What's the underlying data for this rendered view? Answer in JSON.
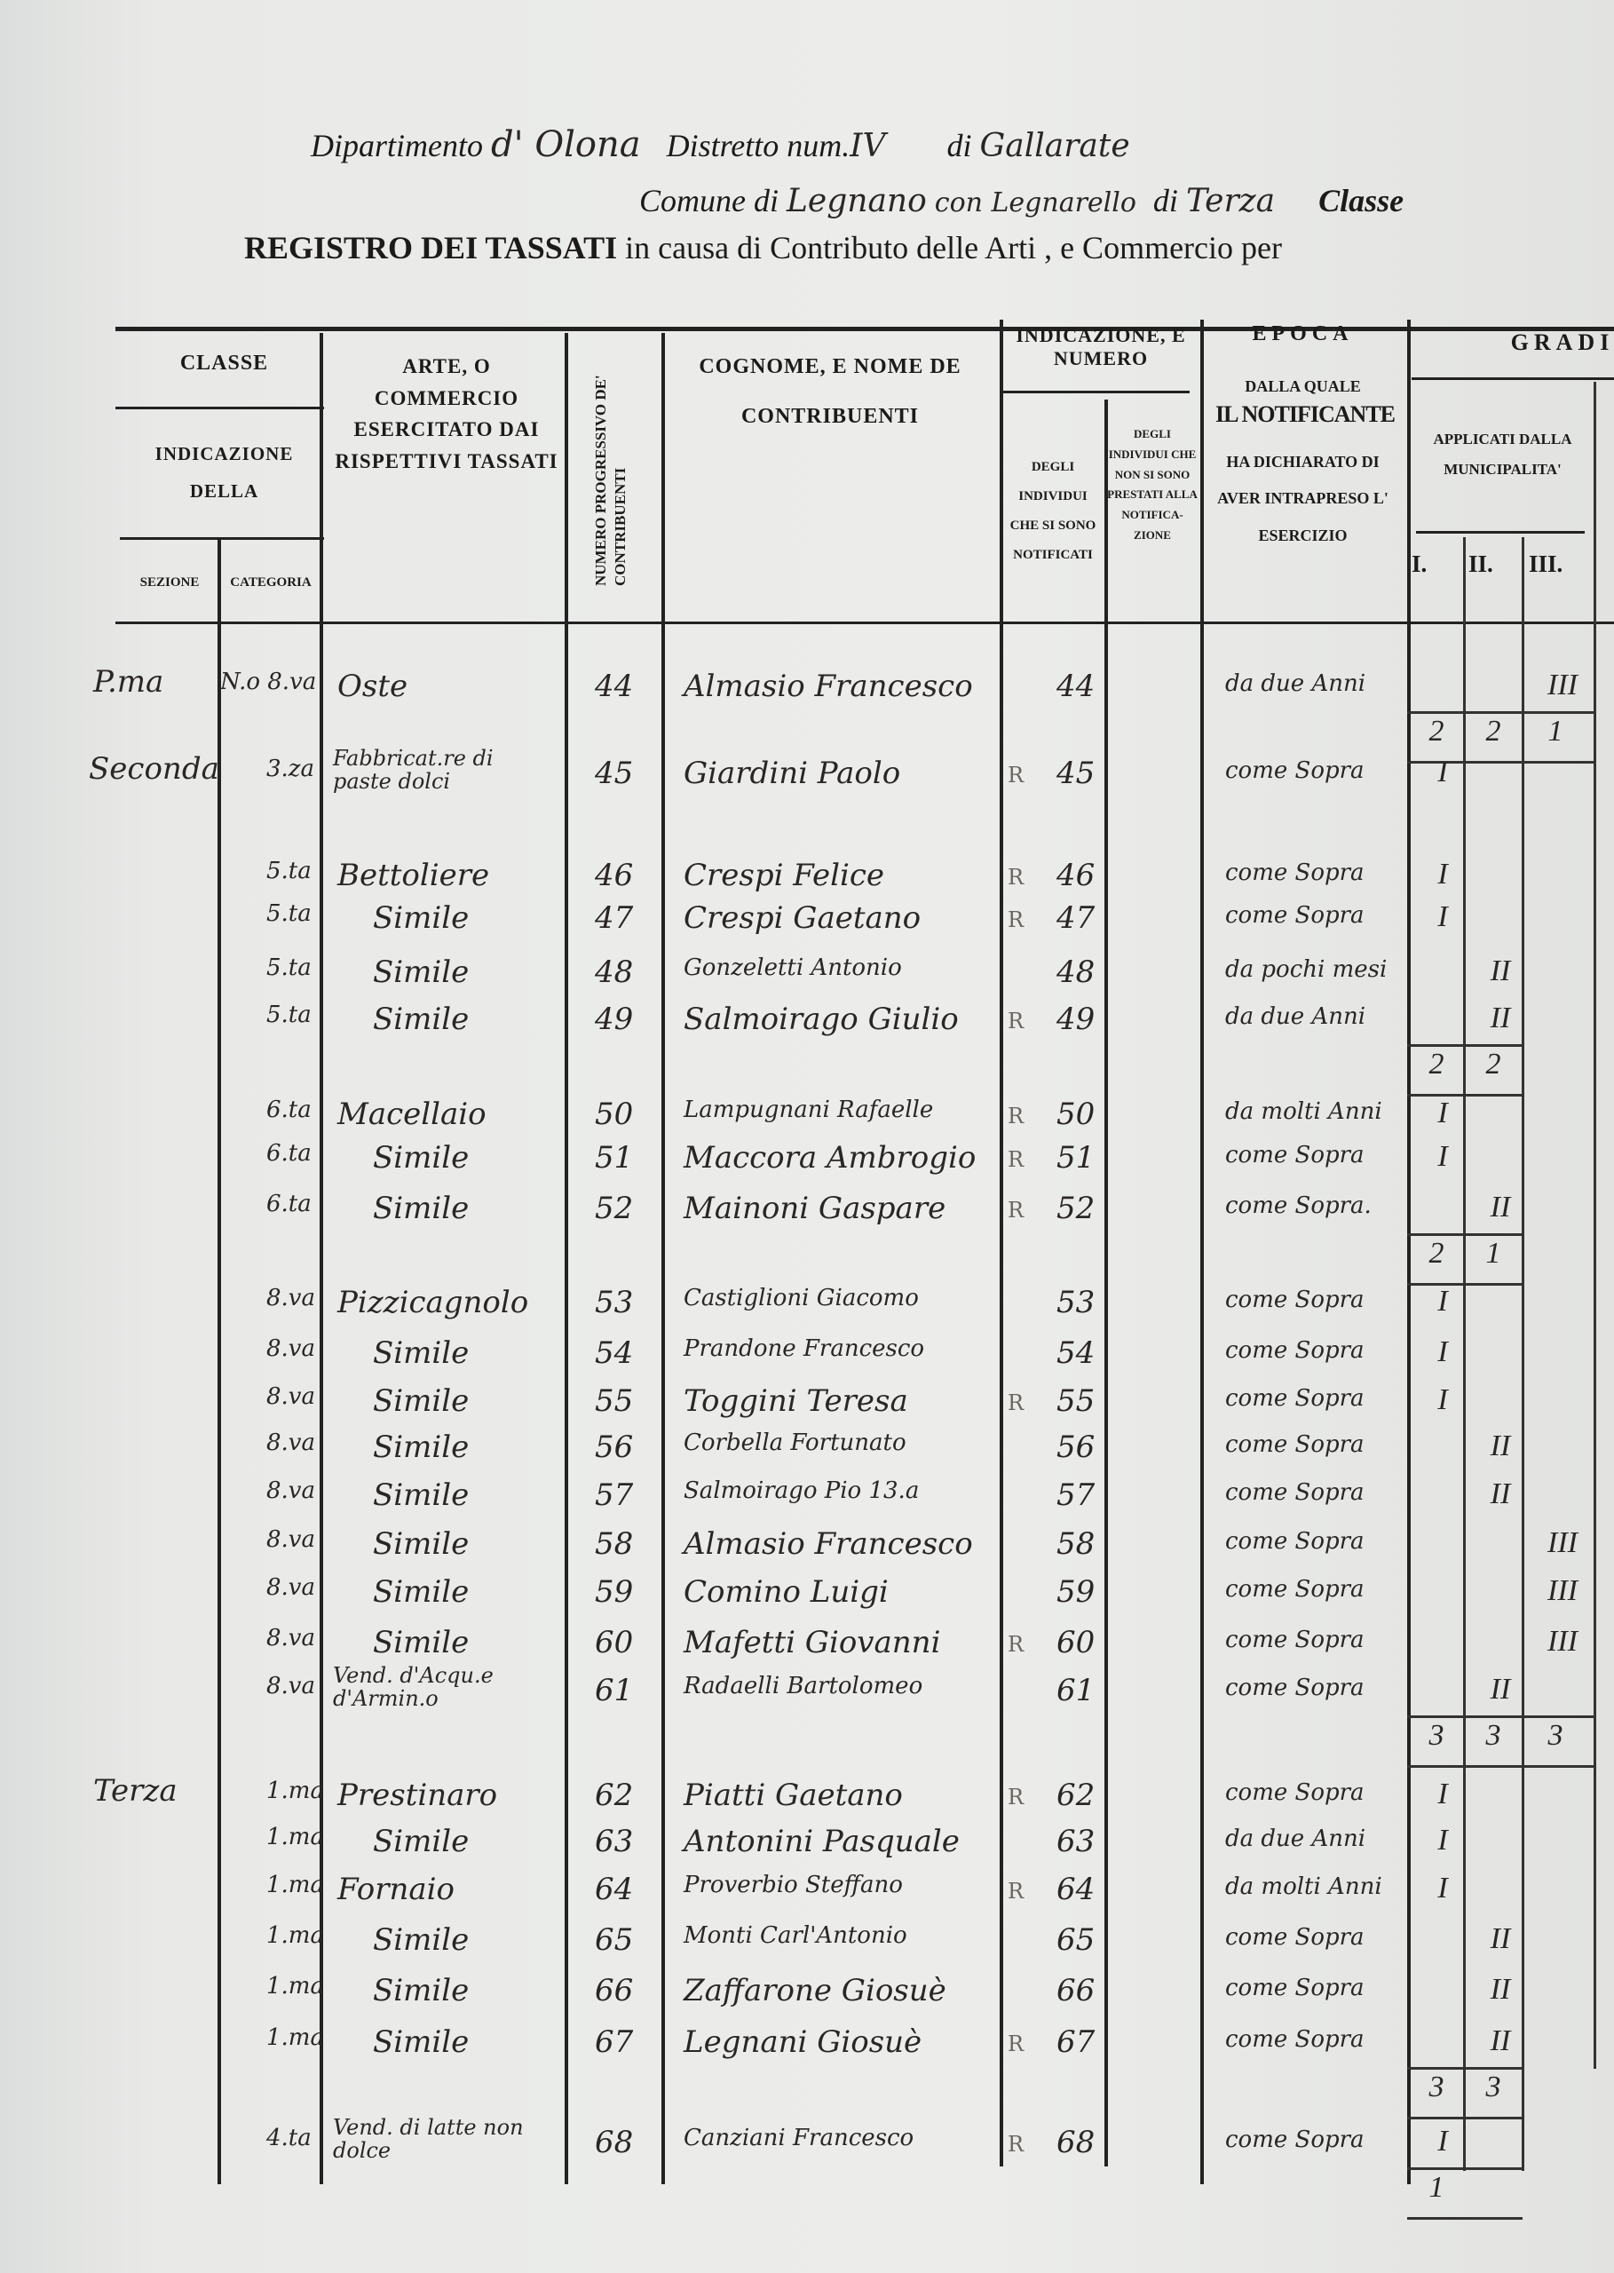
{
  "heading": {
    "line1_print_a": "Dipartimento",
    "line1_hand_a": "d' Olona",
    "line1_print_b": "Distretto num.",
    "line1_hand_b": "IV",
    "line1_print_c": "di",
    "line1_hand_c": "Gallarate",
    "line2_print_a": "Comune di",
    "line2_hand_a": "Legnano",
    "line2_hand_b": "con Legnarello",
    "line2_print_b": "di",
    "line2_hand_c": "Terza",
    "line2_print_c": "Classe",
    "line3_bold": "REGISTRO DEI TASSATI",
    "line3_rest": "in causa di Contributo delle Arti , e Commercio per"
  },
  "columns": {
    "classe": "CLASSE",
    "indicazione_della": "INDICAZIONE DELLA",
    "sezione": "SEZIONE",
    "categoria": "CATEGORIA",
    "arte": "ARTE, O COMMERCIO ESERCITATO DAI RISPETTIVI TASSATI",
    "numero": "NUMERO PROGRESSIVO DE' CONTRIBUENTI",
    "cognome": "COGNOME, E NOME DE CONTRIBUENTI",
    "indicazione_numero": "INDICAZIONE, E NUMERO",
    "notificati": "DEGLI INDIVIDUI CHE SI SONO NOTIFICATI",
    "non_notificati": "DEGLI INDIVIDUI CHE NON SI SONO PRESTATI ALLA NOTIFICA-ZIONE",
    "epoca": "EPOCA",
    "epoca_sub": "DALLA QUALE",
    "epoca_big": "IL NOTIFICANTE",
    "epoca_rest": "HA DICHIARATO DI AVER INTRAPRESO L' ESERCIZIO",
    "gradi": "GRADI",
    "applicati": "APPLICATI DALLA MUNICIPALITA'",
    "grade_labels": [
      "I.",
      "II.",
      "III."
    ]
  },
  "rows": [
    {
      "sezione": "P.ma",
      "categoria": "N.o 8.va",
      "arte": "Oste",
      "num": "44",
      "nome": "Almasio Francesco",
      "r": "",
      "num2": "44",
      "epoca": "da due Anni",
      "grado": "III"
    },
    {
      "sezione": "Seconda",
      "categoria": "3.za",
      "arte": "Fabbricat.re di paste dolci",
      "num": "45",
      "nome": "Giardini Paolo",
      "r": "R",
      "num2": "45",
      "epoca": "come Sopra",
      "grado": "I"
    },
    {
      "sezione": "",
      "categoria": "5.ta",
      "arte": "Bettoliere",
      "num": "46",
      "nome": "Crespi Felice",
      "r": "R",
      "num2": "46",
      "epoca": "come Sopra",
      "grado": "I"
    },
    {
      "sezione": "",
      "categoria": "5.ta",
      "arte": "Simile",
      "num": "47",
      "nome": "Crespi Gaetano",
      "r": "R",
      "num2": "47",
      "epoca": "come Sopra",
      "grado": "I"
    },
    {
      "sezione": "",
      "categoria": "5.ta",
      "arte": "Simile",
      "num": "48",
      "nome": "Gonzeletti Antonio",
      "r": "",
      "num2": "48",
      "epoca": "da pochi mesi",
      "grado": "II"
    },
    {
      "sezione": "",
      "categoria": "5.ta",
      "arte": "Simile",
      "num": "49",
      "nome": "Salmoirago Giulio",
      "r": "R",
      "num2": "49",
      "epoca": "da due Anni",
      "grado": "II"
    },
    {
      "sezione": "",
      "categoria": "6.ta",
      "arte": "Macellaio",
      "num": "50",
      "nome": "Lampugnani Rafaelle",
      "r": "R",
      "num2": "50",
      "epoca": "da molti Anni",
      "grado": "I"
    },
    {
      "sezione": "",
      "categoria": "6.ta",
      "arte": "Simile",
      "num": "51",
      "nome": "Maccora Ambrogio",
      "r": "R",
      "num2": "51",
      "epoca": "come Sopra",
      "grado": "I"
    },
    {
      "sezione": "",
      "categoria": "6.ta",
      "arte": "Simile",
      "num": "52",
      "nome": "Mainoni Gaspare",
      "r": "R",
      "num2": "52",
      "epoca": "come Sopra.",
      "grado": "II"
    },
    {
      "sezione": "",
      "categoria": "8.va",
      "arte": "Pizzicagnolo",
      "num": "53",
      "nome": "Castiglioni Giacomo",
      "r": "",
      "num2": "53",
      "epoca": "come Sopra",
      "grado": "I"
    },
    {
      "sezione": "",
      "categoria": "8.va",
      "arte": "Simile",
      "num": "54",
      "nome": "Prandone Francesco",
      "r": "",
      "num2": "54",
      "epoca": "come Sopra",
      "grado": "I"
    },
    {
      "sezione": "",
      "categoria": "8.va",
      "arte": "Simile",
      "num": "55",
      "nome": "Toggini Teresa",
      "r": "R",
      "num2": "55",
      "epoca": "come Sopra",
      "grado": "I"
    },
    {
      "sezione": "",
      "categoria": "8.va",
      "arte": "Simile",
      "num": "56",
      "nome": "Corbella Fortunato",
      "r": "",
      "num2": "56",
      "epoca": "come Sopra",
      "grado": "II"
    },
    {
      "sezione": "",
      "categoria": "8.va",
      "arte": "Simile",
      "num": "57",
      "nome": "Salmoirago Pio 13.a",
      "r": "",
      "num2": "57",
      "epoca": "come Sopra",
      "grado": "II"
    },
    {
      "sezione": "",
      "categoria": "8.va",
      "arte": "Simile",
      "num": "58",
      "nome": "Almasio Francesco",
      "r": "",
      "num2": "58",
      "epoca": "come Sopra",
      "grado": "III"
    },
    {
      "sezione": "",
      "categoria": "8.va",
      "arte": "Simile",
      "num": "59",
      "nome": "Comino Luigi",
      "r": "",
      "num2": "59",
      "epoca": "come Sopra",
      "grado": "III"
    },
    {
      "sezione": "",
      "categoria": "8.va",
      "arte": "Simile",
      "num": "60",
      "nome": "Mafetti Giovanni",
      "r": "R",
      "num2": "60",
      "epoca": "come Sopra",
      "grado": "III"
    },
    {
      "sezione": "",
      "categoria": "8.va",
      "arte": "Vend. d'Acqu.e d'Armin.o",
      "num": "61",
      "nome": "Radaelli Bartolomeo",
      "r": "",
      "num2": "61",
      "epoca": "come Sopra",
      "grado": "II"
    },
    {
      "sezione": "Terza",
      "categoria": "1.ma",
      "arte": "Prestinaro",
      "num": "62",
      "nome": "Piatti Gaetano",
      "r": "R",
      "num2": "62",
      "epoca": "come Sopra",
      "grado": "I"
    },
    {
      "sezione": "",
      "categoria": "1.ma",
      "arte": "Simile",
      "num": "63",
      "nome": "Antonini Pasquale",
      "r": "",
      "num2": "63",
      "epoca": "da due Anni",
      "grado": "I"
    },
    {
      "sezione": "",
      "categoria": "1.ma",
      "arte": "Fornaio",
      "num": "64",
      "nome": "Proverbio Steffano",
      "r": "R",
      "num2": "64",
      "epoca": "da molti Anni",
      "grado": "I"
    },
    {
      "sezione": "",
      "categoria": "1.ma",
      "arte": "Simile",
      "num": "65",
      "nome": "Monti Carl'Antonio",
      "r": "",
      "num2": "65",
      "epoca": "come Sopra",
      "grado": "II"
    },
    {
      "sezione": "",
      "categoria": "1.ma",
      "arte": "Simile",
      "num": "66",
      "nome": "Zaffarone Giosuè",
      "r": "",
      "num2": "66",
      "epoca": "come Sopra",
      "grado": "II"
    },
    {
      "sezione": "",
      "categoria": "1.ma",
      "arte": "Simile",
      "num": "67",
      "nome": "Legnani Giosuè",
      "r": "R",
      "num2": "67",
      "epoca": "come Sopra",
      "grado": "II"
    },
    {
      "sezione": "",
      "categoria": "4.ta",
      "arte": "Vend. di latte non dolce",
      "num": "68",
      "nome": "Canziani Francesco",
      "r": "R",
      "num2": "68",
      "epoca": "come Sopra",
      "grado": "I"
    }
  ],
  "subtotals": [
    {
      "after": "44",
      "values": [
        "2",
        "2",
        "1"
      ]
    },
    {
      "after": "49",
      "values": [
        "2",
        "2",
        ""
      ]
    },
    {
      "after": "52",
      "values": [
        "2",
        "1",
        ""
      ]
    },
    {
      "after": "61",
      "values": [
        "3",
        "3",
        "3"
      ]
    },
    {
      "after": "67",
      "values": [
        "3",
        "3",
        ""
      ]
    },
    {
      "after": "68",
      "values": [
        "1",
        "",
        ""
      ]
    }
  ]
}
